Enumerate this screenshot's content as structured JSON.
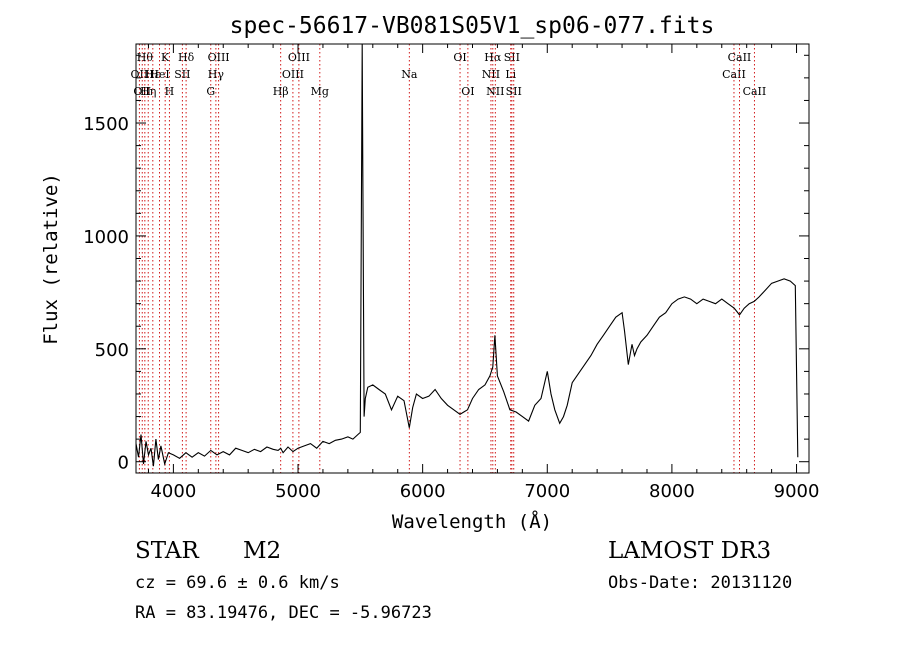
{
  "chart_data": {
    "type": "line",
    "title": "spec-56617-VB081S05V1_sp06-077.fits",
    "xlabel": "Wavelength (Å)",
    "ylabel": "Flux (relative)",
    "xlim": [
      3700,
      9100
    ],
    "ylim": [
      -50,
      1850
    ],
    "x_ticks": [
      4000,
      5000,
      6000,
      7000,
      8000,
      9000
    ],
    "x_tick_labels": [
      "4000",
      "5000",
      "6000",
      "7000",
      "8000",
      "9000"
    ],
    "y_ticks": [
      0,
      500,
      1000,
      1500
    ],
    "y_tick_labels": [
      "0",
      "500",
      "1000",
      "1500"
    ],
    "grid": false,
    "line_color": "#000000",
    "marker_color": "#cc0000",
    "series": [
      {
        "x": [
          3700,
          3720,
          3740,
          3760,
          3780,
          3800,
          3820,
          3840,
          3860,
          3880,
          3900,
          3930,
          3960,
          4000,
          4050,
          4100,
          4150,
          4200,
          4250,
          4300,
          4350,
          4400,
          4450,
          4500,
          4550,
          4600,
          4650,
          4700,
          4750,
          4800,
          4840,
          4861,
          4880,
          4920,
          4960,
          5000,
          5050,
          5100,
          5150,
          5200,
          5250,
          5300,
          5350,
          5400,
          5440,
          5480,
          5500,
          5515,
          5520,
          5530,
          5540,
          5560,
          5600,
          5650,
          5700,
          5750,
          5800,
          5850,
          5893,
          5920,
          5950,
          6000,
          6050,
          6100,
          6150,
          6200,
          6250,
          6300,
          6330,
          6360,
          6400,
          6450,
          6500,
          6540,
          6563,
          6580,
          6600,
          6650,
          6700,
          6750,
          6800,
          6850,
          6900,
          6950,
          7000,
          7030,
          7060,
          7100,
          7130,
          7160,
          7200,
          7250,
          7300,
          7350,
          7400,
          7450,
          7500,
          7550,
          7600,
          7620,
          7650,
          7680,
          7700,
          7720,
          7750,
          7800,
          7850,
          7900,
          7950,
          8000,
          8050,
          8100,
          8150,
          8200,
          8250,
          8300,
          8350,
          8400,
          8450,
          8500,
          8542,
          8580,
          8620,
          8660,
          8700,
          8750,
          8800,
          8850,
          8900,
          8950,
          8990,
          9010
        ],
        "values": [
          80,
          20,
          120,
          -10,
          90,
          30,
          60,
          -20,
          100,
          10,
          70,
          -10,
          40,
          30,
          15,
          40,
          20,
          40,
          25,
          50,
          30,
          45,
          30,
          60,
          50,
          40,
          55,
          45,
          65,
          55,
          50,
          60,
          40,
          65,
          45,
          60,
          70,
          80,
          60,
          90,
          80,
          95,
          100,
          110,
          100,
          120,
          130,
          1850,
          1300,
          200,
          280,
          330,
          340,
          320,
          300,
          230,
          290,
          270,
          150,
          240,
          300,
          280,
          290,
          320,
          280,
          250,
          230,
          210,
          220,
          230,
          280,
          320,
          340,
          380,
          420,
          560,
          380,
          310,
          230,
          220,
          200,
          180,
          250,
          280,
          400,
          300,
          230,
          170,
          200,
          250,
          350,
          390,
          430,
          470,
          520,
          560,
          600,
          640,
          660,
          580,
          430,
          520,
          470,
          500,
          530,
          560,
          600,
          640,
          660,
          700,
          720,
          730,
          720,
          700,
          720,
          710,
          700,
          720,
          700,
          680,
          650,
          680,
          700,
          710,
          730,
          760,
          790,
          800,
          810,
          800,
          780,
          20
        ]
      }
    ],
    "line_markers": [
      {
        "wavelength": 3727,
        "label": "OII",
        "row": 1
      },
      {
        "wavelength": 3750,
        "label": "OII",
        "row": 2
      },
      {
        "wavelength": 3771,
        "label": "Hθ",
        "row": 0
      },
      {
        "wavelength": 3798,
        "label": "Hη",
        "row": 2
      },
      {
        "wavelength": 3835,
        "label": "Hε",
        "row": 1
      },
      {
        "wavelength": 3889,
        "label": "HeI",
        "row": 1
      },
      {
        "wavelength": 3934,
        "label": "K",
        "row": 0
      },
      {
        "wavelength": 3968,
        "label": "H",
        "row": 2
      },
      {
        "wavelength": 4072,
        "label": "SII",
        "row": 1
      },
      {
        "wavelength": 4102,
        "label": "Hδ",
        "row": 0
      },
      {
        "wavelength": 4300,
        "label": "G",
        "row": 2
      },
      {
        "wavelength": 4341,
        "label": "Hγ",
        "row": 1
      },
      {
        "wavelength": 4363,
        "label": "OIII",
        "row": 0
      },
      {
        "wavelength": 4861,
        "label": "Hβ",
        "row": 2
      },
      {
        "wavelength": 4959,
        "label": "OIII",
        "row": 1
      },
      {
        "wavelength": 5007,
        "label": "OIII",
        "row": 0
      },
      {
        "wavelength": 5175,
        "label": "Mg",
        "row": 2
      },
      {
        "wavelength": 5893,
        "label": "Na",
        "row": 1
      },
      {
        "wavelength": 6300,
        "label": "OI",
        "row": 0
      },
      {
        "wavelength": 6363,
        "label": "OI",
        "row": 2
      },
      {
        "wavelength": 6548,
        "label": "NII",
        "row": 1
      },
      {
        "wavelength": 6563,
        "label": "Hα",
        "row": 0
      },
      {
        "wavelength": 6583,
        "label": "NII",
        "row": 2
      },
      {
        "wavelength": 6707,
        "label": "Li",
        "row": 1
      },
      {
        "wavelength": 6716,
        "label": "SII",
        "row": 0
      },
      {
        "wavelength": 6731,
        "label": "SII",
        "row": 2
      },
      {
        "wavelength": 8498,
        "label": "CaII",
        "row": 1
      },
      {
        "wavelength": 8542,
        "label": "CaII",
        "row": 0
      },
      {
        "wavelength": 8662,
        "label": "CaII",
        "row": 2
      }
    ]
  },
  "info": {
    "class": "STAR",
    "subclass": "M2",
    "survey": "LAMOST DR3",
    "redshift": "cz = 69.6 ± 0.6 km/s",
    "obs_date": "Obs-Date: 20131120",
    "coords": "RA =  83.19476, DEC =  -5.96723"
  }
}
